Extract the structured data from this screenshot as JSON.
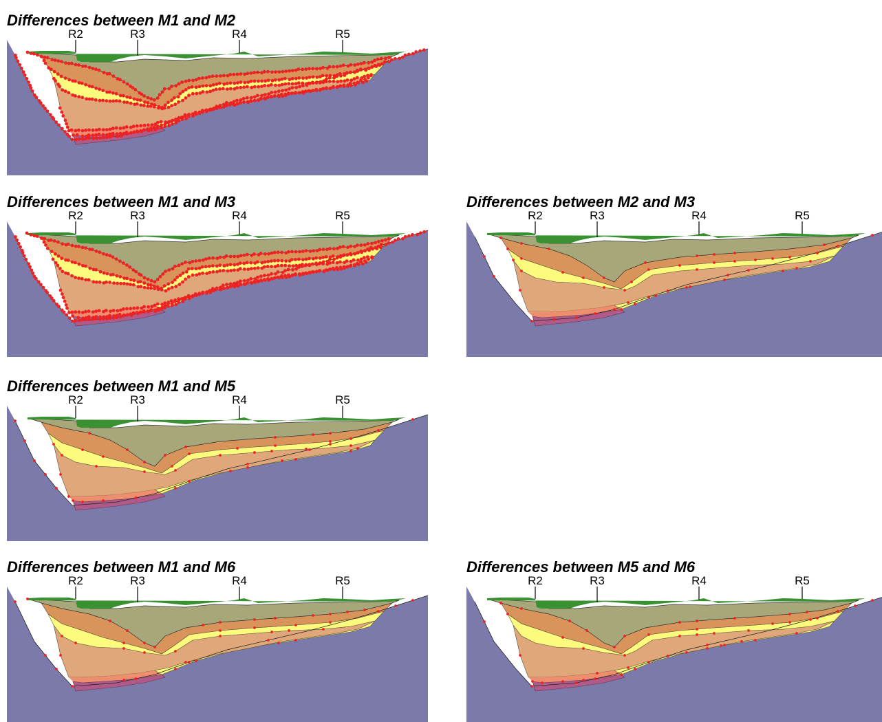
{
  "reference_labels": [
    "R2",
    "R3",
    "R4",
    "R5"
  ],
  "panels": [
    {
      "id": "m1-m2",
      "title": "Differences between M1 and M2",
      "density": "high"
    },
    {
      "id": "m1-m3",
      "title": "Differences between M1 and M3",
      "density": "high"
    },
    {
      "id": "m2-m3",
      "title": "Differences between M2 and M3",
      "density": "low"
    },
    {
      "id": "m1-m5",
      "title": "Differences between M1 and M5",
      "density": "low"
    },
    {
      "id": "m1-m6",
      "title": "Differences between M1 and M6",
      "density": "low"
    },
    {
      "id": "m5-m6",
      "title": "Differences between M5 and M6",
      "density": "low"
    }
  ],
  "colors": {
    "bedrock": "#7b7aab",
    "surface": "#3a9132",
    "upper_fill": "#a8a77a",
    "orange_dark": "#d8945a",
    "yellow": "#fdfb7e",
    "tan": "#e0a87a",
    "salmon": "#ef8e6e",
    "magenta": "#b05a8a",
    "difference_marker": "#ee2222"
  }
}
